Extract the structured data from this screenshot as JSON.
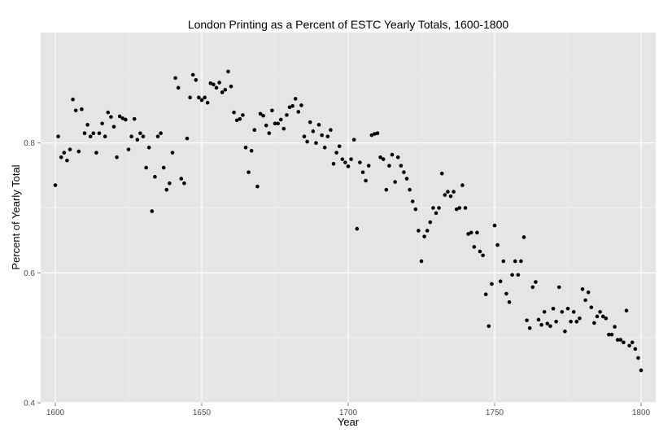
{
  "chart_data": {
    "type": "scatter",
    "title": "London Printing as a Percent of ESTC Yearly Totals, 1600-1800",
    "xlabel": "Year",
    "ylabel": "Percent of Yearly Total",
    "xlim": [
      1595,
      1805
    ],
    "ylim": [
      0.4,
      0.97
    ],
    "x_ticks": [
      1600,
      1650,
      1700,
      1750,
      1800
    ],
    "y_ticks": [
      0.4,
      0.6,
      0.8
    ],
    "x_tick_labels": [
      "1600",
      "1650",
      "1700",
      "1750",
      "1800"
    ],
    "y_tick_labels": [
      "0.4",
      "0.6",
      "0.8"
    ],
    "grid": true,
    "legend": "none",
    "colors": {
      "panel": "#e5e5e5",
      "grid_major": "#ffffff",
      "grid_minor": "#f2f2f2",
      "point": "#000000"
    },
    "series": [
      {
        "x": [
          1600,
          1601,
          1602,
          1603,
          1604,
          1605,
          1606,
          1607,
          1608,
          1609,
          1610,
          1611,
          1612,
          1613,
          1614,
          1615,
          1616,
          1617,
          1618,
          1619,
          1620,
          1621,
          1622,
          1623,
          1624,
          1625,
          1626,
          1627,
          1628,
          1629,
          1630,
          1631,
          1632,
          1633,
          1634,
          1635,
          1636,
          1637,
          1638,
          1639,
          1640,
          1641,
          1642,
          1643,
          1644,
          1645,
          1646,
          1647,
          1648,
          1649,
          1650,
          1651,
          1652,
          1653,
          1654,
          1655,
          1656,
          1657,
          1658,
          1659,
          1660,
          1661,
          1662,
          1663,
          1664,
          1665,
          1666,
          1667,
          1668,
          1669,
          1670,
          1671,
          1672,
          1673,
          1674,
          1675,
          1676,
          1677,
          1678,
          1679,
          1680,
          1681,
          1682,
          1683,
          1684,
          1685,
          1686,
          1687,
          1688,
          1689,
          1690,
          1691,
          1692,
          1693,
          1694,
          1695,
          1696,
          1697,
          1698,
          1699,
          1700,
          1701,
          1702,
          1703,
          1704,
          1705,
          1706,
          1707,
          1708,
          1709,
          1710,
          1711,
          1712,
          1713,
          1714,
          1715,
          1716,
          1717,
          1718,
          1719,
          1720,
          1721,
          1722,
          1723,
          1724,
          1725,
          1726,
          1727,
          1728,
          1729,
          1730,
          1731,
          1732,
          1733,
          1734,
          1735,
          1736,
          1737,
          1738,
          1739,
          1740,
          1741,
          1742,
          1743,
          1744,
          1745,
          1746,
          1747,
          1748,
          1749,
          1750,
          1751,
          1752,
          1753,
          1754,
          1755,
          1756,
          1757,
          1758,
          1759,
          1760,
          1761,
          1762,
          1763,
          1764,
          1765,
          1766,
          1767,
          1768,
          1769,
          1770,
          1771,
          1772,
          1773,
          1774,
          1775,
          1776,
          1777,
          1778,
          1779,
          1780,
          1781,
          1782,
          1783,
          1784,
          1785,
          1786,
          1787,
          1788,
          1789,
          1790,
          1791,
          1792,
          1793,
          1794,
          1795,
          1796,
          1797,
          1798,
          1799,
          1800
        ],
        "y": [
          0.735,
          0.81,
          0.778,
          0.785,
          0.773,
          0.79,
          0.867,
          0.85,
          0.787,
          0.852,
          0.815,
          0.828,
          0.81,
          0.815,
          0.785,
          0.815,
          0.83,
          0.81,
          0.847,
          0.84,
          0.825,
          0.778,
          0.841,
          0.838,
          0.836,
          0.79,
          0.81,
          0.837,
          0.805,
          0.815,
          0.81,
          0.762,
          0.793,
          0.695,
          0.748,
          0.81,
          0.815,
          0.762,
          0.728,
          0.738,
          0.785,
          0.9,
          0.885,
          0.745,
          0.738,
          0.807,
          0.87,
          0.905,
          0.897,
          0.87,
          0.866,
          0.87,
          0.862,
          0.892,
          0.89,
          0.885,
          0.893,
          0.878,
          0.882,
          0.91,
          0.887,
          0.847,
          0.835,
          0.837,
          0.843,
          0.793,
          0.755,
          0.788,
          0.82,
          0.733,
          0.845,
          0.842,
          0.827,
          0.815,
          0.85,
          0.83,
          0.83,
          0.836,
          0.822,
          0.843,
          0.855,
          0.857,
          0.868,
          0.848,
          0.858,
          0.81,
          0.802,
          0.832,
          0.818,
          0.8,
          0.828,
          0.812,
          0.793,
          0.81,
          0.82,
          0.768,
          0.785,
          0.795,
          0.775,
          0.77,
          0.764,
          0.775,
          0.805,
          0.668,
          0.77,
          0.755,
          0.742,
          0.765,
          0.812,
          0.814,
          0.815,
          0.778,
          0.775,
          0.728,
          0.765,
          0.782,
          0.74,
          0.778,
          0.765,
          0.755,
          0.745,
          0.728,
          0.71,
          0.698,
          0.665,
          0.618,
          0.656,
          0.665,
          0.678,
          0.7,
          0.692,
          0.7,
          0.753,
          0.72,
          0.725,
          0.718,
          0.725,
          0.698,
          0.7,
          0.735,
          0.7,
          0.66,
          0.662,
          0.64,
          0.662,
          0.633,
          0.627,
          0.567,
          0.518,
          0.583,
          0.673,
          0.643,
          0.587,
          0.618,
          0.568,
          0.555,
          0.597,
          0.618,
          0.597,
          0.618,
          0.655,
          0.527,
          0.515,
          0.578,
          0.586,
          0.528,
          0.52,
          0.54,
          0.522,
          0.518,
          0.545,
          0.525,
          0.578,
          0.54,
          0.51,
          0.545,
          0.525,
          0.54,
          0.525,
          0.53,
          0.575,
          0.558,
          0.57,
          0.547,
          0.523,
          0.533,
          0.54,
          0.533,
          0.53,
          0.505,
          0.505,
          0.517,
          0.497,
          0.497,
          0.493,
          0.542,
          0.488,
          0.493,
          0.483,
          0.469,
          0.45
        ]
      }
    ]
  }
}
